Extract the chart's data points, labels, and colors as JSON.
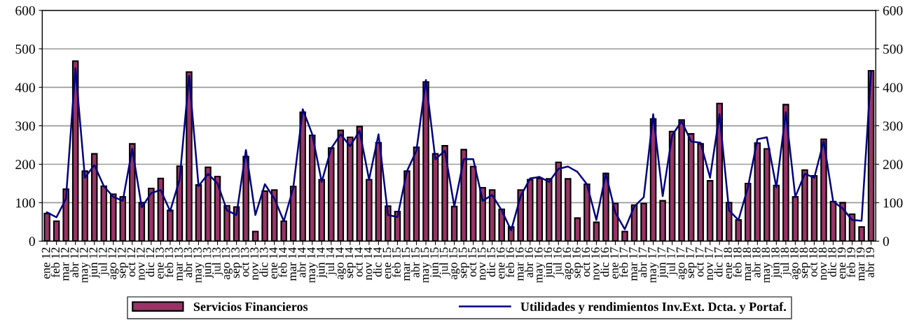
{
  "chart_data": {
    "type": "bar",
    "categories": [
      "ene 12",
      "feb 12",
      "mar 12",
      "abr 12",
      "may 12",
      "jun 12",
      "jul 12",
      "ago 12",
      "sep 12",
      "oct 12",
      "nov 12",
      "dic 12",
      "ene 13",
      "feb 13",
      "mar 13",
      "abr 13",
      "may 13",
      "jun 13",
      "jul 13",
      "ago 13",
      "sep 13",
      "oct 13",
      "nov 13",
      "dic 13",
      "ene 14",
      "feb 14",
      "mar 14",
      "abr 14",
      "may 14",
      "jun 14",
      "jul 14",
      "ago 14",
      "sep 14",
      "oct 14",
      "nov 14",
      "dic 14",
      "ene 15",
      "feb 15",
      "mar 15",
      "abr 15",
      "may 15",
      "jun 15",
      "jul 15",
      "ago 15",
      "sep 15",
      "oct 15",
      "nov 15",
      "dic 15",
      "ene 16",
      "feb 16",
      "mar 16",
      "abr 16",
      "may 16",
      "jun 16",
      "jul 16",
      "ago 16",
      "sep 16",
      "oct 16",
      "nov 16",
      "dic 16",
      "ene 17",
      "feb 17",
      "mar 17",
      "abr 17",
      "may 17",
      "jun 17",
      "jul 17",
      "ago 17",
      "sep 17",
      "oct 17",
      "nov 17",
      "dic 17",
      "ene 18",
      "feb 18",
      "mar 18",
      "abr 18",
      "may 18",
      "jun 18",
      "jul 18",
      "ago 18",
      "sep 18",
      "oct 18",
      "nov 18",
      "dic 18",
      "ene 19",
      "feb 19",
      "mar 19",
      "abr 19"
    ],
    "series": [
      {
        "name": "Servicios Financieros",
        "color": "#993366",
        "values": [
          72,
          52,
          135,
          468,
          182,
          227,
          143,
          122,
          115,
          253,
          100,
          137,
          163,
          80,
          195,
          440,
          146,
          192,
          168,
          92,
          89,
          220,
          25,
          130,
          133,
          52,
          142,
          335,
          275,
          160,
          242,
          288,
          270,
          298,
          160,
          256,
          91,
          77,
          182,
          244,
          414,
          227,
          248,
          90,
          238,
          194,
          139,
          133,
          83,
          37,
          133,
          160,
          163,
          162,
          205,
          162,
          60,
          148,
          49,
          176,
          98,
          25,
          94,
          98,
          318,
          105,
          285,
          315,
          279,
          253,
          157,
          358,
          100,
          55,
          150,
          255,
          240,
          145,
          355,
          115,
          185,
          170,
          265,
          103,
          100,
          70,
          37,
          443
        ]
      },
      {
        "name": "Utilidades y rendimientos Inv.Ext. Dcta. y Portaf.",
        "type": "line",
        "color": "#000080",
        "values": [
          75,
          62,
          110,
          450,
          165,
          198,
          143,
          115,
          105,
          240,
          88,
          125,
          133,
          78,
          160,
          430,
          143,
          175,
          150,
          80,
          68,
          237,
          68,
          148,
          111,
          52,
          139,
          343,
          278,
          154,
          241,
          278,
          247,
          287,
          160,
          278,
          68,
          63,
          182,
          235,
          419,
          213,
          235,
          90,
          213,
          213,
          105,
          120,
          80,
          28,
          117,
          163,
          167,
          154,
          188,
          194,
          180,
          148,
          55,
          176,
          74,
          31,
          90,
          114,
          330,
          117,
          275,
          312,
          259,
          256,
          165,
          330,
          80,
          55,
          140,
          265,
          270,
          140,
          335,
          115,
          175,
          165,
          260,
          103,
          85,
          55,
          53,
          440
        ]
      }
    ],
    "ylim": [
      0,
      600
    ],
    "yticks": [
      0,
      100,
      200,
      300,
      400,
      500,
      600
    ],
    "y2lim": [
      0,
      600
    ],
    "y2ticks": [
      0,
      100,
      200,
      300,
      400,
      500,
      600
    ],
    "grid": "y",
    "legend": "bottom",
    "marker": "none",
    "line_style": "solid"
  }
}
